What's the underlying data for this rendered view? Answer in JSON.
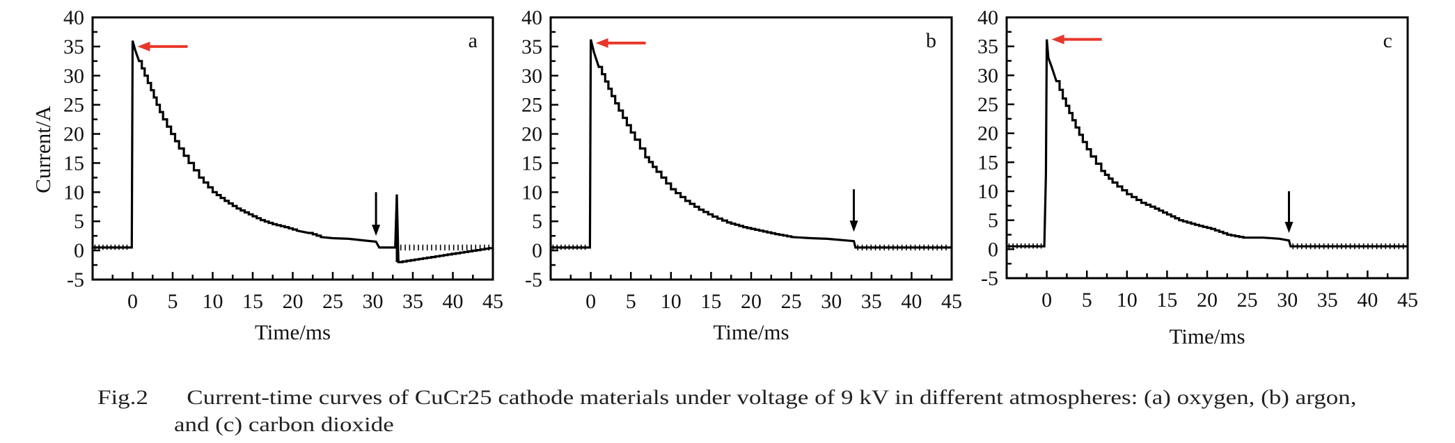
{
  "figure": {
    "caption_number": "Fig.2",
    "caption_line1": "Current-time curves of CuCr25 cathode materials under voltage of 9 kV in different atmospheres: (a) oxygen, (b) argon,",
    "caption_line2": "and (c) carbon dioxide"
  },
  "colors": {
    "curve": "#000000",
    "axis": "#000000",
    "peak_arrow": "#e8372a",
    "marker_arrow": "#000000"
  },
  "chart_data": [
    {
      "type": "line",
      "panel_label": "a",
      "atmosphere": "oxygen",
      "xlabel": "Time/ms",
      "ylabel": "Current/A",
      "xlim": [
        -5,
        45
      ],
      "ylim": [
        -5,
        40
      ],
      "xticks": [
        0,
        5,
        10,
        15,
        20,
        25,
        30,
        35,
        40,
        45
      ],
      "yticks": [
        -5,
        0,
        5,
        10,
        15,
        20,
        25,
        30,
        35,
        40
      ],
      "series": [
        {
          "name": "current",
          "x": [
            -5,
            -0.1,
            0,
            0.3,
            0.8,
            1.5,
            2.3,
            3.0,
            3.8,
            4.8,
            5.8,
            7.0,
            8.3,
            10.0,
            11.5,
            13.0,
            14.5,
            16.0,
            17.5,
            19.0,
            20.5,
            22.0,
            23.5,
            25.0,
            27.0,
            29.0,
            30.4,
            30.8,
            32.8,
            33.0,
            33.2,
            45
          ],
          "y": [
            0.5,
            0.5,
            36,
            34.5,
            32.5,
            30,
            27.5,
            25,
            22.5,
            20,
            17.5,
            15,
            12.5,
            10,
            8.5,
            7.2,
            6.2,
            5.2,
            4.5,
            4.0,
            3.4,
            3.0,
            2.3,
            2.1,
            2.0,
            1.7,
            1.5,
            0.5,
            0.5,
            9.6,
            -2,
            0.5
          ]
        }
      ],
      "peak_marker": {
        "x": 0,
        "y": 35
      },
      "event_markers": [
        {
          "x": 30.4,
          "y_from": 10,
          "y_to": 2.5
        }
      ],
      "spike": {
        "x": 33.0,
        "y_from": 9.6,
        "y_to": -2
      }
    },
    {
      "type": "line",
      "panel_label": "b",
      "atmosphere": "argon",
      "xlabel": "Time/ms",
      "ylabel": "",
      "xlim": [
        -5,
        45
      ],
      "ylim": [
        -5,
        40
      ],
      "xticks": [
        0,
        5,
        10,
        15,
        20,
        25,
        30,
        35,
        40,
        45
      ],
      "yticks": [
        -5,
        0,
        5,
        10,
        15,
        20,
        25,
        30,
        35,
        40
      ],
      "series": [
        {
          "name": "current",
          "x": [
            -5,
            -0.1,
            0,
            0.4,
            1.0,
            1.8,
            2.6,
            3.5,
            4.5,
            5.5,
            6.8,
            8.2,
            10.0,
            11.8,
            13.5,
            15.2,
            17.0,
            19.0,
            21.0,
            23.0,
            25.0,
            27.5,
            29.5,
            32.8,
            33.0,
            45
          ],
          "y": [
            0.5,
            0.5,
            36.2,
            34,
            31.5,
            29,
            26.5,
            24,
            21.5,
            19,
            16,
            13.5,
            10.5,
            8.5,
            7.0,
            5.8,
            4.8,
            4.0,
            3.4,
            2.8,
            2.3,
            2.1,
            2.0,
            1.6,
            0.5,
            0.5
          ]
        }
      ],
      "peak_marker": {
        "x": 0,
        "y": 35.6
      },
      "event_markers": [
        {
          "x": 32.8,
          "y_from": 10.5,
          "y_to": 3.2
        }
      ]
    },
    {
      "type": "line",
      "panel_label": "c",
      "atmosphere": "carbon dioxide",
      "xlabel": "Time/ms",
      "ylabel": "",
      "xlim": [
        -5,
        45
      ],
      "ylim": [
        -5,
        40
      ],
      "xticks": [
        0,
        5,
        10,
        15,
        20,
        25,
        30,
        35,
        40,
        45
      ],
      "yticks": [
        -5,
        0,
        5,
        10,
        15,
        20,
        25,
        30,
        35,
        40
      ],
      "series": [
        {
          "name": "current",
          "x": [
            -5,
            -0.3,
            -0.1,
            0,
            0.2,
            0.6,
            1.2,
            2.0,
            2.8,
            3.6,
            4.5,
            5.5,
            6.8,
            8.2,
            10.0,
            11.8,
            13.5,
            15.0,
            16.5,
            18.5,
            20.5,
            22.5,
            24.5,
            27.0,
            29.0,
            30.2,
            30.4,
            45
          ],
          "y": [
            0.5,
            0.5,
            13,
            36.2,
            33,
            31.5,
            29,
            26,
            23.5,
            21,
            18.5,
            16,
            13.5,
            11.5,
            9.5,
            8.0,
            7.0,
            6.0,
            5.0,
            4.2,
            3.5,
            2.5,
            2.0,
            2.0,
            1.8,
            1.5,
            0.5,
            0.5
          ]
        }
      ],
      "peak_marker": {
        "x": 0,
        "y": 36.2
      },
      "event_markers": [
        {
          "x": 30.2,
          "y_from": 10,
          "y_to": 2.8
        }
      ]
    }
  ]
}
